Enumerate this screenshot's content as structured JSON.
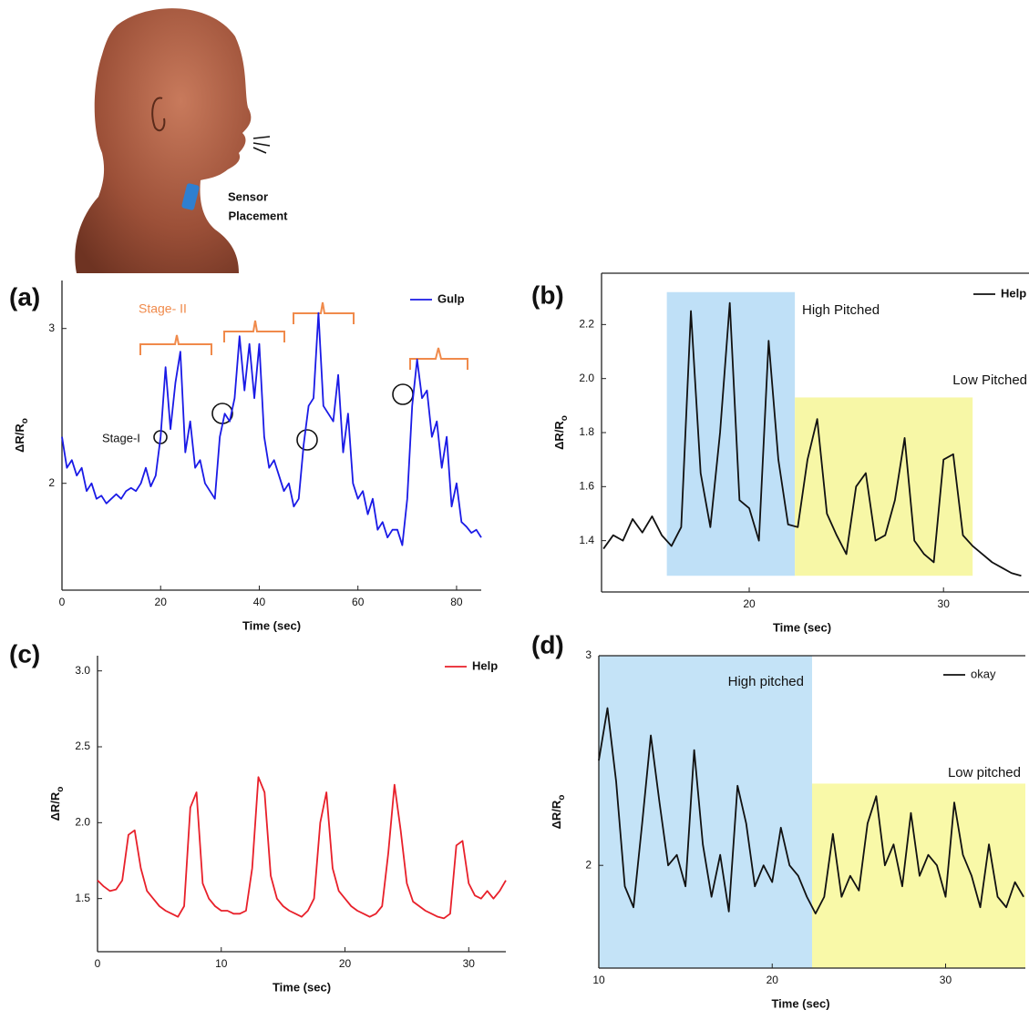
{
  "illustration": {
    "label_lines": [
      "Sensor",
      "Placement"
    ]
  },
  "chart_data": [
    {
      "type": "line",
      "label": "(a)",
      "xlabel": "Time (sec)",
      "ylabel": "ΔR/R",
      "ylabel_sub": "o",
      "xlim": [
        0,
        85
      ],
      "ylim": [
        1.31,
        3.31
      ],
      "xticks": [
        0,
        20,
        40,
        60,
        80
      ],
      "yticks": [
        2,
        3
      ],
      "legend": "top-right",
      "grid": false,
      "annotations": [
        "Stage- II",
        "Stage-I"
      ],
      "x": [
        0,
        1,
        2,
        3,
        4,
        5,
        6,
        7,
        8,
        9,
        10,
        11,
        12,
        13,
        14,
        15,
        16,
        17,
        18,
        19,
        20,
        21,
        22,
        23,
        24,
        25,
        26,
        27,
        28,
        29,
        30,
        31,
        32,
        33,
        34,
        35,
        36,
        37,
        38,
        39,
        40,
        41,
        42,
        43,
        44,
        45,
        46,
        47,
        48,
        49,
        50,
        51,
        52,
        53,
        54,
        55,
        56,
        57,
        58,
        59,
        60,
        61,
        62,
        63,
        64,
        65,
        66,
        67,
        68,
        69,
        70,
        71,
        72,
        73,
        74,
        75,
        76,
        77,
        78,
        79,
        80,
        81,
        82,
        83,
        84,
        85
      ],
      "series": [
        {
          "name": "Gulp",
          "color": "#1a1ae6",
          "values": [
            2.3,
            2.1,
            2.15,
            2.05,
            2.1,
            1.95,
            2.0,
            1.9,
            1.92,
            1.87,
            1.9,
            1.93,
            1.9,
            1.95,
            1.97,
            1.95,
            2.0,
            2.1,
            1.98,
            2.05,
            2.3,
            2.75,
            2.35,
            2.65,
            2.85,
            2.2,
            2.4,
            2.1,
            2.15,
            2.0,
            1.95,
            1.9,
            2.3,
            2.45,
            2.4,
            2.55,
            2.95,
            2.6,
            2.9,
            2.55,
            2.9,
            2.3,
            2.1,
            2.15,
            2.05,
            1.95,
            2.0,
            1.85,
            1.9,
            2.25,
            2.5,
            2.55,
            3.1,
            2.5,
            2.45,
            2.4,
            2.7,
            2.2,
            2.45,
            2.0,
            1.9,
            1.95,
            1.8,
            1.9,
            1.7,
            1.75,
            1.65,
            1.7,
            1.7,
            1.6,
            1.9,
            2.5,
            2.8,
            2.55,
            2.6,
            2.3,
            2.4,
            2.1,
            2.3,
            1.85,
            2.0,
            1.75,
            1.72,
            1.68,
            1.7,
            1.65
          ]
        }
      ]
    },
    {
      "type": "line",
      "label": "(b)",
      "xlabel": "Time (sec)",
      "ylabel": "ΔR/R",
      "ylabel_sub": "o",
      "xlim": [
        12.4,
        34.4
      ],
      "ylim": [
        1.21,
        2.39
      ],
      "xticks": [
        20,
        30
      ],
      "yticks": [
        1.4,
        1.6,
        1.8,
        {
          "value": 2,
          "label": "2.0"
        },
        2.2
      ],
      "legend": "top-right",
      "grid": false,
      "spans": [
        {
          "label": "High Pitched",
          "color": "#bfe0f7",
          "xlim": [
            15.76,
            22.35
          ],
          "ylim": [
            1.27,
            2.32
          ]
        },
        {
          "label": "Low Pitched",
          "color": "#f7f7a6",
          "xlim": [
            22.35,
            31.5
          ],
          "ylim": [
            1.27,
            1.93
          ]
        }
      ],
      "x": [
        12.5,
        13,
        13.5,
        14,
        14.5,
        15,
        15.5,
        16,
        16.5,
        17,
        17.5,
        18,
        18.5,
        19,
        19.5,
        20,
        20.5,
        21,
        21.5,
        22,
        22.5,
        23,
        23.5,
        24,
        24.5,
        25,
        25.5,
        26,
        26.5,
        27,
        27.5,
        28,
        28.5,
        29,
        29.5,
        30,
        30.5,
        31,
        31.5,
        32,
        32.5,
        33,
        33.5,
        34
      ],
      "series": [
        {
          "name": "Help",
          "color": "#111111",
          "values": [
            1.37,
            1.42,
            1.4,
            1.48,
            1.43,
            1.49,
            1.42,
            1.38,
            1.45,
            2.25,
            1.65,
            1.45,
            1.8,
            2.28,
            1.55,
            1.52,
            1.4,
            2.14,
            1.7,
            1.46,
            1.45,
            1.7,
            1.85,
            1.5,
            1.42,
            1.35,
            1.6,
            1.65,
            1.4,
            1.42,
            1.55,
            1.78,
            1.4,
            1.35,
            1.32,
            1.7,
            1.72,
            1.42,
            1.38,
            1.35,
            1.32,
            1.3,
            1.28,
            1.27
          ]
        }
      ]
    },
    {
      "type": "line",
      "label": "(c)",
      "xlabel": "Time (sec)",
      "ylabel": "ΔR/R",
      "ylabel_sub": "o",
      "xlim": [
        0,
        33
      ],
      "ylim": [
        1.15,
        3.1
      ],
      "xticks": [
        0,
        10,
        20,
        30
      ],
      "yticks": [
        1.5,
        {
          "value": 2,
          "label": "2.0"
        },
        2.5,
        {
          "value": 3,
          "label": "3.0"
        }
      ],
      "legend": "top-right",
      "grid": false,
      "x": [
        0,
        0.5,
        1,
        1.5,
        2,
        2.5,
        3,
        3.5,
        4,
        4.5,
        5,
        5.5,
        6,
        6.5,
        7,
        7.5,
        8,
        8.5,
        9,
        9.5,
        10,
        10.5,
        11,
        11.5,
        12,
        12.5,
        13,
        13.5,
        14,
        14.5,
        15,
        15.5,
        16,
        16.5,
        17,
        17.5,
        18,
        18.5,
        19,
        19.5,
        20,
        20.5,
        21,
        21.5,
        22,
        22.5,
        23,
        23.5,
        24,
        24.5,
        25,
        25.5,
        26,
        26.5,
        27,
        27.5,
        28,
        28.5,
        29,
        29.5,
        30,
        30.5,
        31,
        31.5,
        32,
        32.5,
        33
      ],
      "series": [
        {
          "name": "Help",
          "color": "#e8202a",
          "values": [
            1.62,
            1.58,
            1.55,
            1.56,
            1.62,
            1.92,
            1.95,
            1.7,
            1.55,
            1.5,
            1.45,
            1.42,
            1.4,
            1.38,
            1.45,
            2.1,
            2.2,
            1.6,
            1.5,
            1.45,
            1.42,
            1.42,
            1.4,
            1.4,
            1.42,
            1.7,
            2.3,
            2.2,
            1.65,
            1.5,
            1.45,
            1.42,
            1.4,
            1.38,
            1.42,
            1.5,
            2.0,
            2.2,
            1.7,
            1.55,
            1.5,
            1.45,
            1.42,
            1.4,
            1.38,
            1.4,
            1.45,
            1.8,
            2.25,
            1.95,
            1.6,
            1.48,
            1.45,
            1.42,
            1.4,
            1.38,
            1.37,
            1.4,
            1.85,
            1.88,
            1.6,
            1.52,
            1.5,
            1.55,
            1.5,
            1.55,
            1.62
          ]
        }
      ]
    },
    {
      "type": "line",
      "label": "(d)",
      "xlabel": "Time (sec)",
      "ylabel": "ΔR/R",
      "ylabel_sub": "o",
      "xlim": [
        10,
        34.6
      ],
      "ylim": [
        1.51,
        3
      ],
      "xticks": [
        10,
        20,
        30
      ],
      "yticks": [
        2,
        3
      ],
      "legend": "top-right",
      "grid": false,
      "spans": [
        {
          "label": "High pitched",
          "color": "#c4e3f7",
          "xlim": [
            10,
            22.3
          ],
          "ylim": [
            1.51,
            3
          ]
        },
        {
          "label": "Low pitched",
          "color": "#f9f9a8",
          "xlim": [
            22.3,
            34.6
          ],
          "ylim": [
            1.51,
            2.39
          ]
        }
      ],
      "x": [
        10,
        10.5,
        11,
        11.5,
        12,
        12.5,
        13,
        13.5,
        14,
        14.5,
        15,
        15.5,
        16,
        16.5,
        17,
        17.5,
        18,
        18.5,
        19,
        19.5,
        20,
        20.5,
        21,
        21.5,
        22,
        22.5,
        23,
        23.5,
        24,
        24.5,
        25,
        25.5,
        26,
        26.5,
        27,
        27.5,
        28,
        28.5,
        29,
        29.5,
        30,
        30.5,
        31,
        31.5,
        32,
        32.5,
        33,
        33.5,
        34,
        34.5
      ],
      "series": [
        {
          "name": "okay",
          "color": "#111111",
          "values": [
            2.5,
            2.75,
            2.4,
            1.9,
            1.8,
            2.2,
            2.62,
            2.3,
            2.0,
            2.05,
            1.9,
            2.55,
            2.1,
            1.85,
            2.05,
            1.78,
            2.38,
            2.2,
            1.9,
            2.0,
            1.92,
            2.18,
            2.0,
            1.95,
            1.85,
            1.77,
            1.85,
            2.15,
            1.85,
            1.95,
            1.88,
            2.2,
            2.33,
            2.0,
            2.1,
            1.9,
            2.25,
            1.95,
            2.05,
            2.0,
            1.85,
            2.3,
            2.05,
            1.95,
            1.8,
            2.1,
            1.85,
            1.8,
            1.92,
            1.85
          ]
        }
      ]
    }
  ]
}
